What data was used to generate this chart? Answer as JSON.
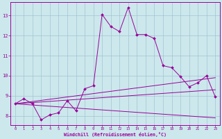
{
  "xlabel": "Windchill (Refroidissement éolien,°C)",
  "background_color": "#cce8ec",
  "line_color": "#990099",
  "xlim": [
    -0.5,
    23.5
  ],
  "ylim": [
    7.55,
    13.65
  ],
  "xticks": [
    0,
    1,
    2,
    3,
    4,
    5,
    6,
    7,
    8,
    9,
    10,
    11,
    12,
    13,
    14,
    15,
    16,
    17,
    18,
    19,
    20,
    21,
    22,
    23
  ],
  "yticks": [
    8,
    9,
    10,
    11,
    12,
    13
  ],
  "line1_x": [
    0,
    1,
    2,
    3,
    4,
    5,
    6,
    7,
    8,
    9,
    10,
    11,
    12,
    13,
    14,
    15,
    16,
    17,
    18,
    19,
    20,
    21,
    22,
    23
  ],
  "line1_y": [
    8.6,
    8.85,
    8.6,
    7.8,
    8.05,
    8.15,
    8.75,
    8.25,
    9.35,
    9.5,
    13.05,
    12.45,
    12.2,
    13.4,
    12.05,
    12.05,
    11.85,
    10.5,
    10.4,
    9.95,
    9.45,
    9.65,
    10.0,
    8.95
  ],
  "line2_x": [
    0,
    23
  ],
  "line2_y": [
    8.6,
    9.9
  ],
  "line3_x": [
    0,
    23
  ],
  "line3_y": [
    8.6,
    9.3
  ],
  "line4_x": [
    0,
    23
  ],
  "line4_y": [
    8.6,
    7.9
  ]
}
